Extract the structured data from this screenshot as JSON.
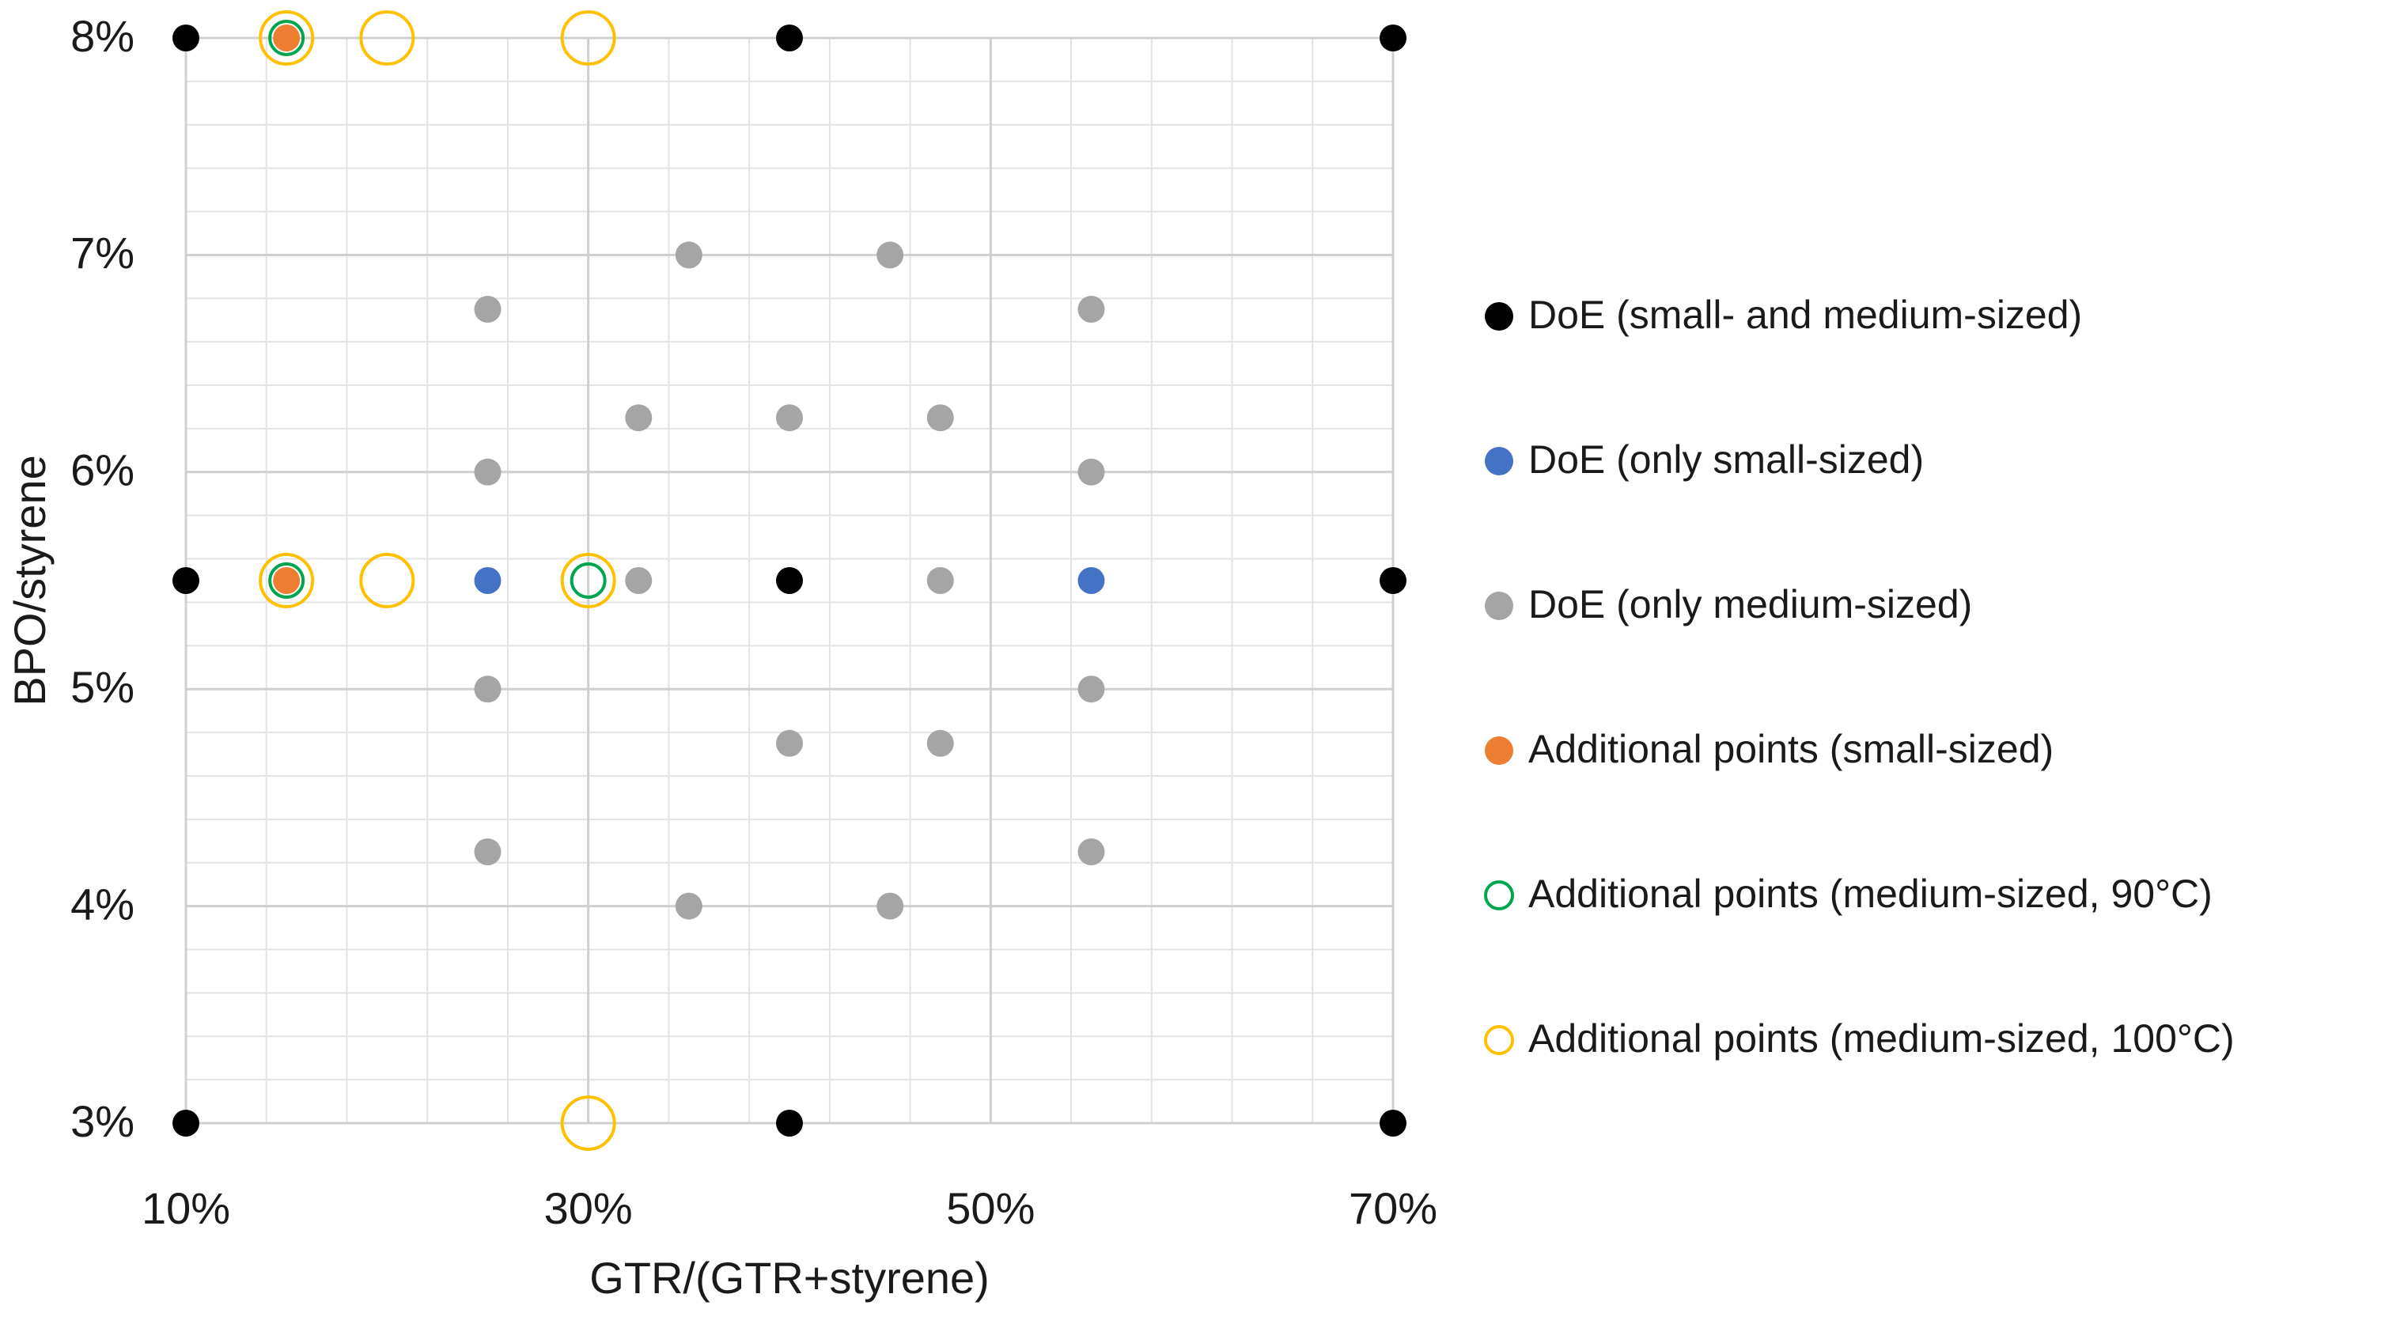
{
  "chart_data": {
    "type": "scatter",
    "x_label": "GTR/(GTR+styrene)",
    "y_label": "BPO/styrene",
    "xlim": [
      10,
      70
    ],
    "ylim": [
      3,
      8
    ],
    "xticks": [
      {
        "value": 10,
        "label": "10%"
      },
      {
        "value": 30,
        "label": "30%"
      },
      {
        "value": 50,
        "label": "50%"
      },
      {
        "value": 70,
        "label": "70%"
      }
    ],
    "yticks": [
      {
        "value": 3,
        "label": "3%"
      },
      {
        "value": 4,
        "label": "4%"
      },
      {
        "value": 5,
        "label": "5%"
      },
      {
        "value": 6,
        "label": "6%"
      },
      {
        "value": 7,
        "label": "7%"
      },
      {
        "value": 8,
        "label": "8%"
      }
    ],
    "grid": true,
    "legend": "right",
    "series": [
      {
        "name": "DoE (small- and medium-sized)",
        "color": "#000000",
        "marker": "filled",
        "size": "small",
        "x": [
          10,
          40,
          70,
          10,
          40,
          70,
          10,
          40,
          70
        ],
        "values": [
          8,
          8,
          8,
          5.5,
          5.5,
          5.5,
          3,
          3,
          3
        ]
      },
      {
        "name": "DoE (only small-sized)",
        "color": "#4472c4",
        "marker": "filled",
        "size": "small",
        "x": [
          25,
          55
        ],
        "values": [
          5.5,
          5.5
        ]
      },
      {
        "name": "DoE (only medium-sized)",
        "color": "#a5a5a5",
        "marker": "filled",
        "size": "small",
        "x": [
          35,
          45,
          25,
          55,
          32.5,
          40,
          47.5,
          25,
          55,
          32.5,
          47.5,
          25,
          55,
          40,
          47.5,
          25,
          55,
          35,
          45
        ],
        "values": [
          7,
          7,
          6.75,
          6.75,
          6.25,
          6.25,
          6.25,
          6,
          6,
          5.5,
          5.5,
          5,
          5,
          4.75,
          4.75,
          4.25,
          4.25,
          4,
          4
        ]
      },
      {
        "name": "Additional points (small-sized)",
        "color": "#ed7d31",
        "marker": "filled",
        "size": "small",
        "x": [
          15,
          15
        ],
        "values": [
          8,
          5.5
        ]
      },
      {
        "name": "Additional points (medium-sized, 90°C)",
        "color": "#00a550",
        "marker": "open",
        "size": "medium",
        "x": [
          15,
          15,
          30
        ],
        "values": [
          8,
          5.5,
          5.5
        ]
      },
      {
        "name": "Additional points (medium-sized, 100°C)",
        "color": "#ffc000",
        "marker": "open",
        "size": "large",
        "x": [
          15,
          20,
          30,
          15,
          20,
          30,
          30
        ],
        "values": [
          8,
          8,
          8,
          5.5,
          5.5,
          5.5,
          3
        ]
      }
    ]
  }
}
